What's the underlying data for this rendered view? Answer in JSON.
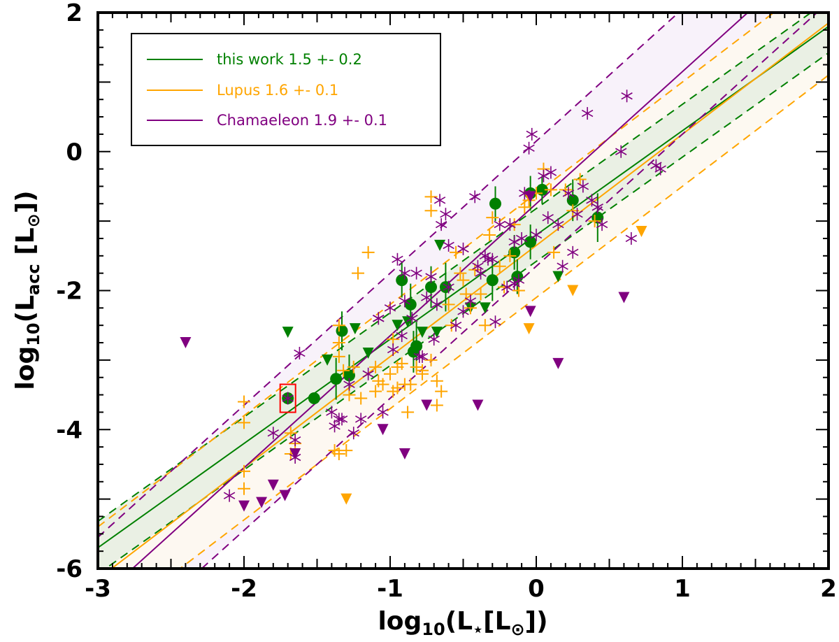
{
  "chart_data": {
    "type": "scatter",
    "title": "",
    "xlabel": "log10(L⋆[L⊙])",
    "ylabel": "log10(Lacc [L⊙])",
    "xlim": [
      -3,
      2
    ],
    "ylim": [
      -6,
      2
    ],
    "xticks": [
      -3,
      -2,
      -1,
      0,
      1,
      2
    ],
    "yticks": [
      -6,
      -4,
      -2,
      0,
      2
    ],
    "xtick_labels": [
      "-3",
      "-2",
      "-1",
      "0",
      "1",
      "2"
    ],
    "ytick_labels": [
      "-6",
      "-4",
      "-2",
      "0",
      "2"
    ],
    "legend_position": "top-left",
    "fits": [
      {
        "name": "this work",
        "label": "this work  1.5 +- 0.2",
        "color": "#008000",
        "slope": 1.5,
        "intercept": -1.2,
        "dashed_offset": 0.38
      },
      {
        "name": "Lupus",
        "label": "Lupus  1.6 +- 0.1",
        "color": "#ffa500",
        "slope": 1.6,
        "intercept": -1.35,
        "dashed_offset": 0.75
      },
      {
        "name": "Chamaeleon",
        "label": "Chamaeleon  1.9 +- 0.1",
        "color": "#800080",
        "slope": 1.9,
        "intercept": -0.75,
        "dashed_offset": 0.9
      }
    ],
    "series": [
      {
        "name": "this work detections",
        "marker": "circle",
        "color": "#008000",
        "points": [
          [
            -1.7,
            -3.55,
            0.0
          ],
          [
            -1.52,
            -3.55,
            0.0
          ],
          [
            -1.33,
            -2.58,
            0.28
          ],
          [
            -1.37,
            -3.27,
            0.3
          ],
          [
            -1.28,
            -3.22,
            0.3
          ],
          [
            -0.92,
            -1.85,
            0.25
          ],
          [
            -0.86,
            -2.2,
            0.3
          ],
          [
            -0.82,
            -2.8,
            0.35
          ],
          [
            -0.84,
            -2.88,
            0.3
          ],
          [
            -0.72,
            -1.95,
            0.3
          ],
          [
            -0.62,
            -1.95,
            0.35
          ],
          [
            -0.28,
            -0.75,
            0.25
          ],
          [
            -0.3,
            -1.85,
            0.3
          ],
          [
            -0.15,
            -1.45,
            0.25
          ],
          [
            -0.13,
            -1.8,
            0.25
          ],
          [
            -0.04,
            -0.6,
            0.25
          ],
          [
            -0.04,
            -1.3,
            0.25
          ],
          [
            0.04,
            -0.55,
            0.2
          ],
          [
            0.25,
            -0.7,
            0.3
          ],
          [
            0.42,
            -0.95,
            0.35
          ]
        ]
      },
      {
        "name": "this work upper limits",
        "marker": "triangle",
        "color": "#008000",
        "points": [
          [
            -1.7,
            -2.6
          ],
          [
            -1.43,
            -3.0
          ],
          [
            -1.24,
            -2.55
          ],
          [
            -1.15,
            -2.9
          ],
          [
            -0.95,
            -2.5
          ],
          [
            -0.88,
            -2.45
          ],
          [
            -0.78,
            -2.6
          ],
          [
            -0.68,
            -2.6
          ],
          [
            -0.66,
            -1.35
          ],
          [
            -0.45,
            -2.25
          ],
          [
            -0.35,
            -2.25
          ],
          [
            0.15,
            -1.8
          ]
        ]
      },
      {
        "name": "Lupus detections",
        "marker": "plus",
        "color": "#ffa500",
        "points": [
          [
            -2.0,
            -3.6
          ],
          [
            -2.0,
            -3.9
          ],
          [
            -2.0,
            -4.6
          ],
          [
            -2.0,
            -4.85
          ],
          [
            -1.68,
            -4.05
          ],
          [
            -1.68,
            -4.35
          ],
          [
            -1.65,
            -4.2
          ],
          [
            -1.35,
            -2.5
          ],
          [
            -1.35,
            -2.75
          ],
          [
            -1.35,
            -2.95
          ],
          [
            -1.32,
            -3.15
          ],
          [
            -1.3,
            -4.3
          ],
          [
            -1.35,
            -4.35
          ],
          [
            -1.38,
            -4.3
          ],
          [
            -1.28,
            -3.5
          ],
          [
            -1.25,
            -3.1
          ],
          [
            -1.22,
            -1.75
          ],
          [
            -1.15,
            -1.45
          ],
          [
            -1.1,
            -3.45
          ],
          [
            -1.05,
            -3.35
          ],
          [
            -1.1,
            -3.1
          ],
          [
            -1.0,
            -3.2
          ],
          [
            -0.98,
            -2.7
          ],
          [
            -0.95,
            -3.1
          ],
          [
            -0.98,
            -3.45
          ],
          [
            -0.92,
            -3.05
          ],
          [
            -0.9,
            -3.35
          ],
          [
            -0.88,
            -3.75
          ],
          [
            -0.86,
            -3.35
          ],
          [
            -0.82,
            -3.1
          ],
          [
            -0.78,
            -3.15
          ],
          [
            -0.78,
            -3.2
          ],
          [
            -0.72,
            -3.0
          ],
          [
            -0.68,
            -3.3
          ],
          [
            -0.68,
            -3.65
          ],
          [
            -0.65,
            -3.45
          ],
          [
            -0.6,
            -2.2
          ],
          [
            -0.58,
            -2.5
          ],
          [
            -0.55,
            -1.45
          ],
          [
            -0.52,
            -1.75
          ],
          [
            -0.5,
            -1.85
          ],
          [
            -0.48,
            -2.05
          ],
          [
            -0.45,
            -2.25
          ],
          [
            -0.42,
            -1.7
          ],
          [
            -0.38,
            -2.05
          ],
          [
            -0.35,
            -2.5
          ],
          [
            -0.32,
            -1.2
          ],
          [
            -0.3,
            -0.95
          ],
          [
            -0.25,
            -1.65
          ],
          [
            -0.22,
            -1.95
          ],
          [
            -0.18,
            -1.5
          ],
          [
            -0.15,
            -1.05
          ],
          [
            -0.12,
            -2.0
          ],
          [
            -0.08,
            -0.8
          ],
          [
            -0.05,
            -0.7
          ],
          [
            0.0,
            -0.6
          ],
          [
            0.05,
            -0.25
          ],
          [
            0.1,
            -0.55
          ],
          [
            0.12,
            -1.45
          ],
          [
            0.2,
            -0.55
          ],
          [
            0.25,
            -0.85
          ],
          [
            0.3,
            -0.4
          ],
          [
            0.4,
            -1.0
          ],
          [
            -0.72,
            -0.65
          ],
          [
            -0.72,
            -0.85
          ],
          [
            -0.95,
            -3.4
          ],
          [
            -1.08,
            -3.3
          ],
          [
            -1.2,
            -3.55
          ]
        ]
      },
      {
        "name": "Lupus upper limits",
        "marker": "triangle",
        "color": "#ffa500",
        "points": [
          [
            -1.3,
            -5.0
          ],
          [
            -0.05,
            -0.65
          ],
          [
            -0.05,
            -2.55
          ],
          [
            0.25,
            -2.0
          ],
          [
            0.72,
            -1.15
          ]
        ]
      },
      {
        "name": "Chamaeleon detections",
        "marker": "asterisk",
        "color": "#800080",
        "points": [
          [
            -2.1,
            -4.95
          ],
          [
            -1.8,
            -4.05
          ],
          [
            -1.7,
            -3.55
          ],
          [
            -1.65,
            -4.15
          ],
          [
            -1.65,
            -4.4
          ],
          [
            -1.62,
            -2.9
          ],
          [
            -1.4,
            -3.75
          ],
          [
            -1.38,
            -3.95
          ],
          [
            -1.35,
            -3.85
          ],
          [
            -1.33,
            -3.85
          ],
          [
            -1.28,
            -3.35
          ],
          [
            -1.25,
            -4.05
          ],
          [
            -1.2,
            -3.85
          ],
          [
            -1.15,
            -3.2
          ],
          [
            -1.08,
            -2.4
          ],
          [
            -1.05,
            -3.75
          ],
          [
            -1.0,
            -2.25
          ],
          [
            -0.98,
            -2.85
          ],
          [
            -0.95,
            -1.55
          ],
          [
            -0.92,
            -2.65
          ],
          [
            -0.9,
            -2.15
          ],
          [
            -0.85,
            -2.4
          ],
          [
            -0.82,
            -1.75
          ],
          [
            -0.8,
            -2.95
          ],
          [
            -0.78,
            -2.95
          ],
          [
            -0.75,
            -2.1
          ],
          [
            -0.72,
            -1.8
          ],
          [
            -0.7,
            -2.7
          ],
          [
            -0.68,
            -2.2
          ],
          [
            -0.66,
            -0.7
          ],
          [
            -0.65,
            -1.05
          ],
          [
            -0.62,
            -0.9
          ],
          [
            -0.6,
            -1.95
          ],
          [
            -0.55,
            -2.5
          ],
          [
            -0.5,
            -2.3
          ],
          [
            -0.45,
            -2.15
          ],
          [
            -0.42,
            -0.65
          ],
          [
            -0.4,
            -1.65
          ],
          [
            -0.38,
            -1.75
          ],
          [
            -0.35,
            -1.5
          ],
          [
            -0.33,
            -1.55
          ],
          [
            -0.3,
            -1.55
          ],
          [
            -0.28,
            -2.45
          ],
          [
            -0.25,
            -1.05
          ],
          [
            -0.2,
            -1.95
          ],
          [
            -0.18,
            -1.05
          ],
          [
            -0.15,
            -1.9
          ],
          [
            -0.12,
            -1.85
          ],
          [
            -0.1,
            -1.25
          ],
          [
            -0.08,
            -0.6
          ],
          [
            -0.05,
            0.05
          ],
          [
            -0.03,
            0.25
          ],
          [
            0.0,
            -1.2
          ],
          [
            0.05,
            -0.35
          ],
          [
            0.08,
            -0.95
          ],
          [
            0.1,
            -0.3
          ],
          [
            0.15,
            -1.05
          ],
          [
            0.18,
            -1.65
          ],
          [
            0.22,
            -0.6
          ],
          [
            0.25,
            -1.45
          ],
          [
            0.28,
            -0.9
          ],
          [
            0.32,
            -0.5
          ],
          [
            0.38,
            -0.7
          ],
          [
            0.42,
            -0.8
          ],
          [
            0.45,
            -1.05
          ],
          [
            0.58,
            0.0
          ],
          [
            0.62,
            0.8
          ],
          [
            0.35,
            0.55
          ],
          [
            0.65,
            -1.25
          ],
          [
            0.82,
            -0.2
          ],
          [
            0.85,
            -0.25
          ],
          [
            -0.15,
            -1.3
          ],
          [
            -0.5,
            -1.4
          ],
          [
            -0.6,
            -1.35
          ],
          [
            -0.9,
            -1.75
          ],
          [
            -1.08,
            -2.4
          ]
        ]
      },
      {
        "name": "Chamaeleon upper limits",
        "marker": "triangle",
        "color": "#800080",
        "points": [
          [
            -2.4,
            -2.75
          ],
          [
            -2.0,
            -5.1
          ],
          [
            -1.88,
            -5.05
          ],
          [
            -1.8,
            -4.8
          ],
          [
            -1.72,
            -4.95
          ],
          [
            -1.65,
            -4.35
          ],
          [
            -1.05,
            -4.0
          ],
          [
            -0.9,
            -4.35
          ],
          [
            -0.75,
            -3.65
          ],
          [
            -0.4,
            -3.65
          ],
          [
            -0.04,
            -0.65
          ],
          [
            -0.04,
            -2.3
          ],
          [
            0.15,
            -3.05
          ],
          [
            0.6,
            -2.1
          ]
        ]
      }
    ],
    "highlight": {
      "x": -1.7,
      "y": -3.55,
      "color": "#ff0000"
    }
  }
}
